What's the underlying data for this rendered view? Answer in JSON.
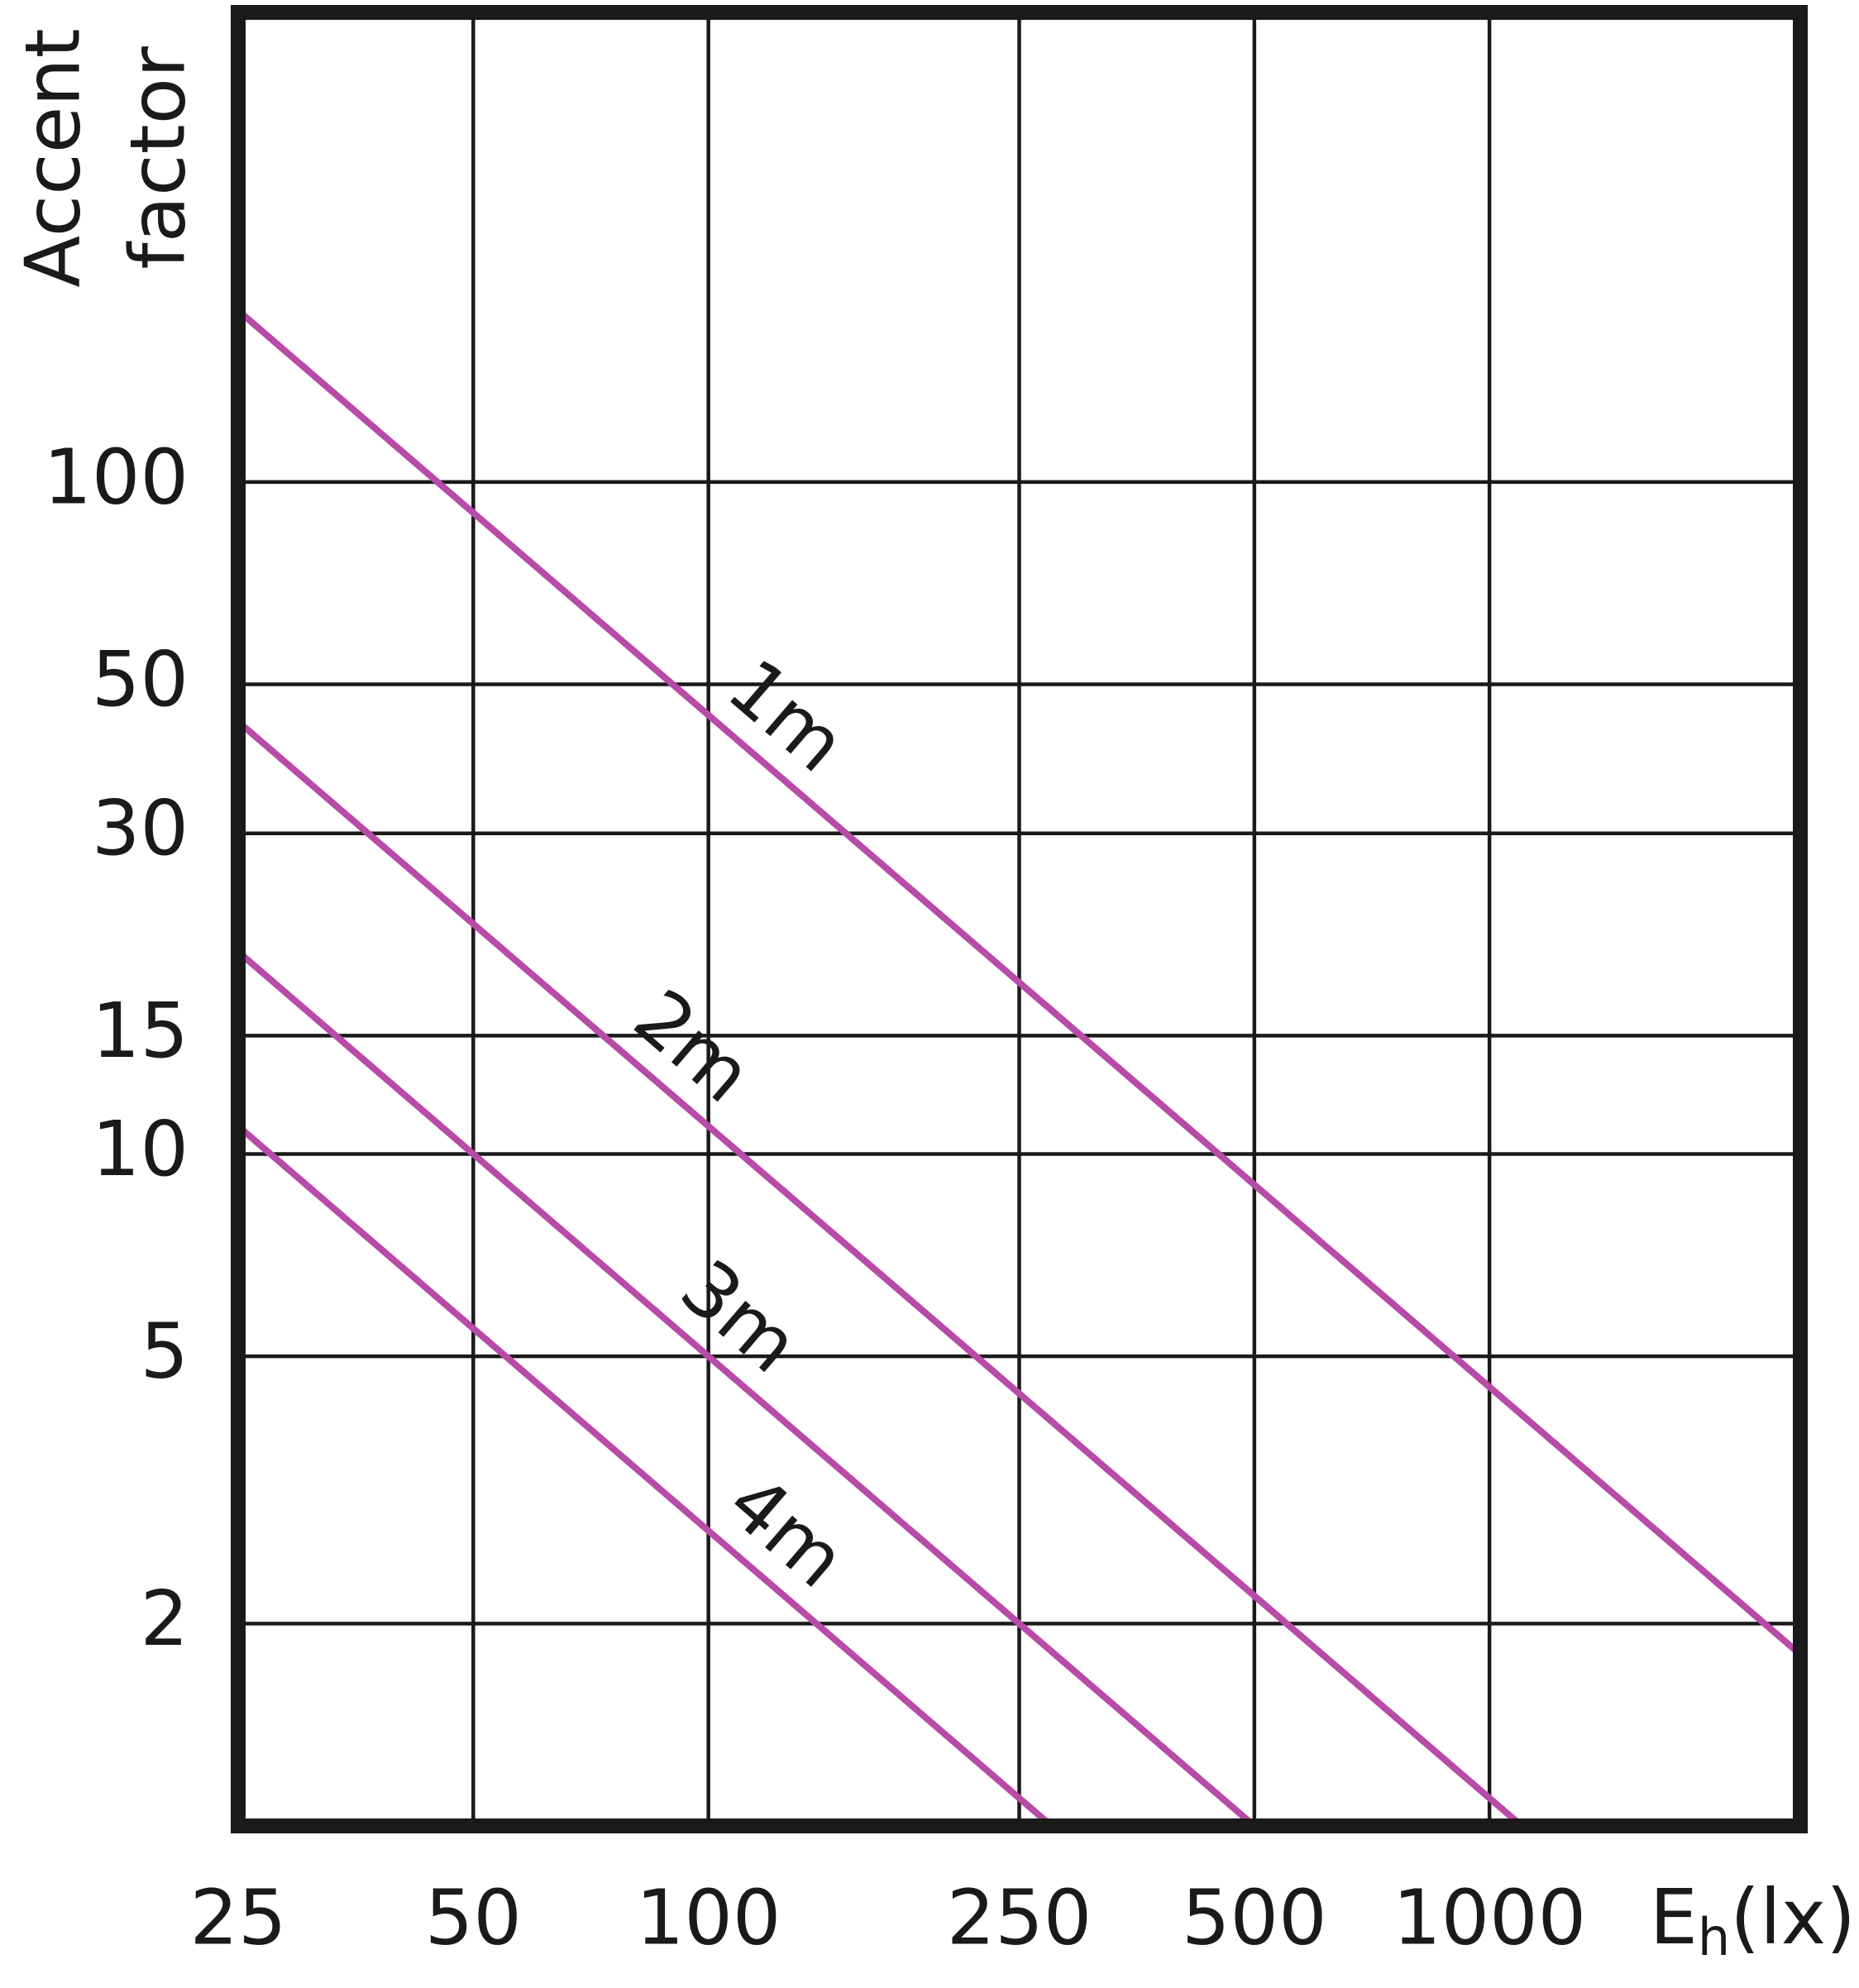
{
  "chart_data": {
    "type": "line",
    "x_label": {
      "symbol": "E",
      "subscript": "h",
      "unit": "(lx)"
    },
    "y_label": [
      "Accent",
      "factor"
    ],
    "xscale": "log",
    "yscale": "log",
    "grid": true,
    "xlim": [
      25,
      2500
    ],
    "ylim": [
      1,
      500
    ],
    "xticks": [
      25,
      50,
      100,
      250,
      500,
      1000
    ],
    "yticks": [
      2,
      5,
      10,
      15,
      30,
      50,
      100
    ],
    "series": [
      {
        "name": "1m",
        "color": "#b84aa8",
        "x": [
          25,
          2500
        ],
        "values": [
          180,
          1.8
        ]
      },
      {
        "name": "2m",
        "color": "#b84aa8",
        "x": [
          25,
          1100
        ],
        "values": [
          44,
          1
        ]
      },
      {
        "name": "3m",
        "color": "#b84aa8",
        "x": [
          25,
          500
        ],
        "values": [
          20,
          1
        ]
      },
      {
        "name": "4m",
        "color": "#b84aa8",
        "x": [
          25,
          275
        ],
        "values": [
          11,
          1
        ]
      }
    ]
  }
}
